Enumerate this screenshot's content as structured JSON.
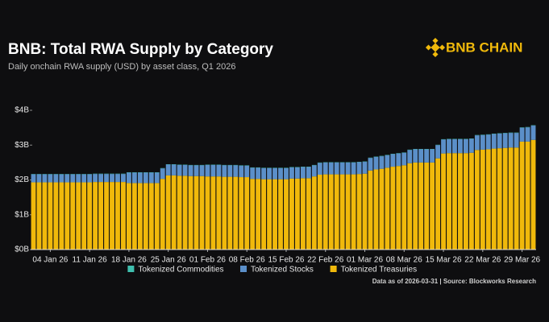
{
  "chart_data": {
    "type": "stacked-bar",
    "title": "BNB: Total RWA Supply by Category",
    "subtitle": "Daily onchain RWA supply (USD) by asset class, Q1 2026",
    "brand": "BNB CHAIN",
    "source": "Data as of 2026-03-31 | Source: Blockworks Research",
    "categories": [
      null,
      null,
      null,
      "04 Jan 26",
      null,
      null,
      null,
      null,
      null,
      null,
      "11 Jan 26",
      null,
      null,
      null,
      null,
      null,
      null,
      "18 Jan 26",
      null,
      null,
      null,
      null,
      null,
      null,
      "25 Jan 26",
      null,
      null,
      null,
      null,
      null,
      null,
      "01 Feb 26",
      null,
      null,
      null,
      null,
      null,
      null,
      "08 Feb 26",
      null,
      null,
      null,
      null,
      null,
      null,
      "15 Feb 26",
      null,
      null,
      null,
      null,
      null,
      null,
      "22 Feb 26",
      null,
      null,
      null,
      null,
      null,
      null,
      "01 Mar 26",
      null,
      null,
      null,
      null,
      null,
      null,
      "08 Mar 26",
      null,
      null,
      null,
      null,
      null,
      null,
      "15 Mar 26",
      null,
      null,
      null,
      null,
      null,
      null,
      "22 Mar 26",
      null,
      null,
      null,
      null,
      null,
      null,
      "29 Mar 26",
      null,
      null
    ],
    "series": [
      {
        "name": "Tokenized Commodities",
        "color": "#3fbfae",
        "values": [
          0.01,
          0.01,
          0.01,
          0.01,
          0.01,
          0.01,
          0.01,
          0.01,
          0.01,
          0.01,
          0.01,
          0.01,
          0.01,
          0.01,
          0.01,
          0.01,
          0.01,
          0.01,
          0.01,
          0.01,
          0.01,
          0.01,
          0.01,
          0.01,
          0.01,
          0.01,
          0.01,
          0.01,
          0.01,
          0.01,
          0.01,
          0.01,
          0.01,
          0.01,
          0.01,
          0.01,
          0.01,
          0.01,
          0.01,
          0.01,
          0.01,
          0.01,
          0.01,
          0.01,
          0.01,
          0.01,
          0.01,
          0.01,
          0.01,
          0.01,
          0.01,
          0.01,
          0.01,
          0.01,
          0.01,
          0.01,
          0.01,
          0.01,
          0.01,
          0.01,
          0.01,
          0.01,
          0.01,
          0.01,
          0.01,
          0.01,
          0.01,
          0.01,
          0.01,
          0.01,
          0.01,
          0.01,
          0.01,
          0.01,
          0.01,
          0.01,
          0.01,
          0.01,
          0.01,
          0.01,
          0.01,
          0.01,
          0.01,
          0.01,
          0.01,
          0.01,
          0.01,
          0.01,
          0.01,
          0.01
        ]
      },
      {
        "name": "Tokenized Stocks",
        "color": "#5b8fc9",
        "values": [
          0.23,
          0.23,
          0.23,
          0.23,
          0.23,
          0.23,
          0.23,
          0.23,
          0.23,
          0.23,
          0.23,
          0.23,
          0.23,
          0.23,
          0.23,
          0.23,
          0.23,
          0.3,
          0.3,
          0.3,
          0.3,
          0.3,
          0.3,
          0.3,
          0.31,
          0.31,
          0.31,
          0.31,
          0.31,
          0.31,
          0.31,
          0.33,
          0.33,
          0.33,
          0.33,
          0.33,
          0.33,
          0.33,
          0.33,
          0.32,
          0.32,
          0.32,
          0.32,
          0.32,
          0.32,
          0.32,
          0.32,
          0.32,
          0.32,
          0.32,
          0.32,
          0.34,
          0.34,
          0.34,
          0.34,
          0.34,
          0.34,
          0.34,
          0.34,
          0.34,
          0.36,
          0.36,
          0.36,
          0.36,
          0.36,
          0.36,
          0.36,
          0.38,
          0.38,
          0.38,
          0.38,
          0.38,
          0.38,
          0.4,
          0.4,
          0.4,
          0.4,
          0.4,
          0.4,
          0.42,
          0.42,
          0.42,
          0.42,
          0.42,
          0.42,
          0.42,
          0.42,
          0.4,
          0.41,
          0.41
        ]
      },
      {
        "name": "Tokenized Treasuries",
        "color": "#f0b90b",
        "values": [
          1.93,
          1.93,
          1.93,
          1.93,
          1.93,
          1.93,
          1.93,
          1.93,
          1.93,
          1.93,
          1.93,
          1.94,
          1.94,
          1.94,
          1.94,
          1.94,
          1.94,
          1.91,
          1.91,
          1.91,
          1.91,
          1.91,
          1.91,
          2.03,
          2.13,
          2.13,
          2.12,
          2.12,
          2.11,
          2.11,
          2.11,
          2.1,
          2.1,
          2.1,
          2.09,
          2.09,
          2.09,
          2.08,
          2.08,
          2.03,
          2.03,
          2.02,
          2.02,
          2.02,
          2.02,
          2.02,
          2.04,
          2.04,
          2.05,
          2.05,
          2.1,
          2.15,
          2.16,
          2.16,
          2.16,
          2.16,
          2.16,
          2.16,
          2.17,
          2.18,
          2.27,
          2.3,
          2.32,
          2.35,
          2.38,
          2.4,
          2.42,
          2.48,
          2.5,
          2.5,
          2.5,
          2.5,
          2.62,
          2.76,
          2.77,
          2.77,
          2.77,
          2.77,
          2.78,
          2.86,
          2.87,
          2.88,
          2.9,
          2.91,
          2.92,
          2.93,
          2.93,
          3.1,
          3.1,
          3.15
        ]
      }
    ],
    "ylim": [
      0,
      4.1
    ],
    "yticks": [
      {
        "value": 0,
        "label": "$0B"
      },
      {
        "value": 1,
        "label": "$1B"
      },
      {
        "value": 2,
        "label": "$2B"
      },
      {
        "value": 3,
        "label": "$3B"
      },
      {
        "value": 4,
        "label": "$4B"
      }
    ],
    "grid": false
  }
}
